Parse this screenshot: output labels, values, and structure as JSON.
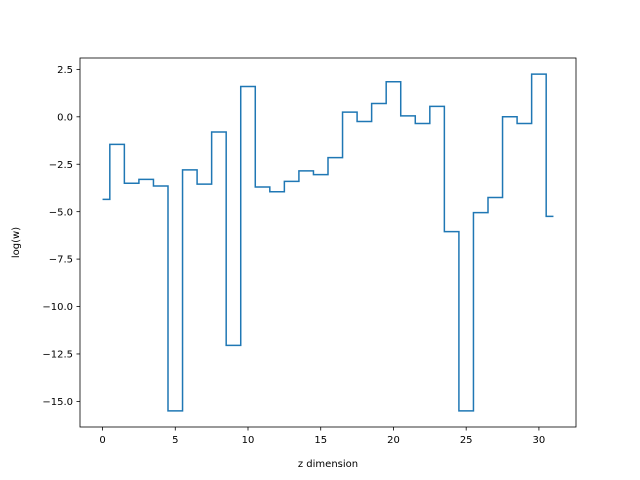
{
  "chart_data": {
    "type": "line",
    "drawstyle": "steps-mid",
    "title": "",
    "xlabel": "z dimension",
    "ylabel": "log(w)",
    "xlim": [
      -1.55,
      32.55
    ],
    "ylim": [
      -16.35,
      3.1
    ],
    "x_ticks": [
      0,
      5,
      10,
      15,
      20,
      25,
      30
    ],
    "x_tick_labels": [
      "0",
      "5",
      "10",
      "15",
      "20",
      "25",
      "30"
    ],
    "y_ticks": [
      2.5,
      0,
      -2.5,
      -5,
      -7.5,
      -10,
      -12.5,
      -15
    ],
    "y_tick_labels": [
      "2.5",
      "0.0",
      "−2.5",
      "−5.0",
      "−7.5",
      "−10.0",
      "−12.5",
      "−15.0"
    ],
    "grid": false,
    "legend": "none",
    "series": [
      {
        "color": "#1f77b4",
        "x": [
          0,
          1,
          2,
          3,
          4,
          5,
          6,
          7,
          8,
          9,
          10,
          11,
          12,
          13,
          14,
          15,
          16,
          17,
          18,
          19,
          20,
          21,
          22,
          23,
          24,
          25,
          26,
          27,
          28,
          29,
          30,
          31
        ],
        "y": [
          -4.35,
          -1.45,
          -3.5,
          -3.3,
          -3.65,
          -15.5,
          -2.8,
          -3.55,
          -0.8,
          -12.05,
          1.6,
          -3.7,
          -3.95,
          -3.4,
          -2.85,
          -3.05,
          -2.15,
          0.25,
          -0.25,
          0.7,
          1.85,
          0.05,
          -0.35,
          0.55,
          -6.05,
          -15.5,
          -5.05,
          -4.25,
          0.0,
          -0.35,
          2.25,
          -5.25
        ]
      }
    ]
  }
}
